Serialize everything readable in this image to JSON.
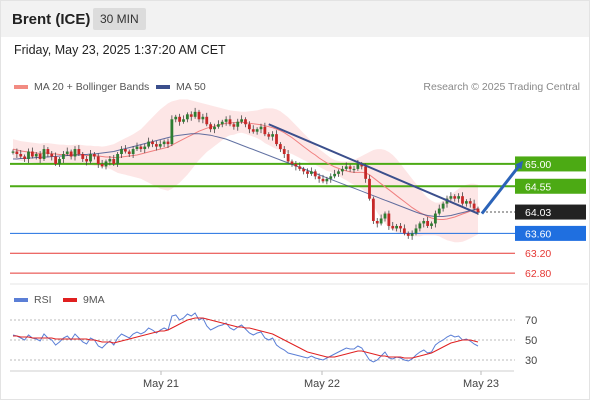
{
  "header": {
    "instrument": "Brent (ICE)",
    "timeframe": "30 MIN",
    "datetime": "Friday, May 23, 2025 1:37:20 AM CET"
  },
  "legend": {
    "ma_bb": {
      "label": "MA 20 + Bollinger Bands",
      "color": "#f28b82"
    },
    "ma50": {
      "label": "MA 50",
      "color": "#3b4f8c"
    },
    "credit": "Research © 2025 Trading Central"
  },
  "rsi_legend": {
    "rsi": {
      "label": "RSI",
      "color": "#5b7fd6"
    },
    "ma9": {
      "label": "9MA",
      "color": "#e02020"
    }
  },
  "chart_data": [
    {
      "type": "candlestick",
      "title": "",
      "yrange": [
        62.6,
        66.45
      ],
      "x_labels": [
        "May 21",
        "May 22",
        "May 23"
      ],
      "price_levels": [
        {
          "value": 65.0,
          "label": "65.00",
          "kind": "resistance",
          "color": "#4caa14"
        },
        {
          "value": 64.55,
          "label": "64.55",
          "kind": "resistance",
          "color": "#4caa14"
        },
        {
          "value": 64.03,
          "label": "64.03",
          "kind": "last",
          "color": "#222222"
        },
        {
          "value": 63.6,
          "label": "63.60",
          "kind": "pivot",
          "color": "#1f6fe0"
        },
        {
          "value": 63.2,
          "label": "63.20",
          "kind": "support",
          "color": "#e53935"
        },
        {
          "value": 62.8,
          "label": "62.80",
          "kind": "support",
          "color": "#e53935"
        }
      ],
      "closes": [
        65.25,
        65.2,
        65.15,
        65.1,
        65.25,
        65.15,
        65.2,
        65.1,
        65.3,
        65.2,
        65.15,
        65.0,
        65.1,
        65.2,
        65.25,
        65.15,
        65.3,
        65.2,
        65.1,
        65.05,
        65.2,
        65.15,
        65.0,
        64.95,
        65.05,
        65.1,
        65.0,
        65.2,
        65.3,
        65.25,
        65.2,
        65.3,
        65.35,
        65.3,
        65.35,
        65.45,
        65.4,
        65.35,
        65.4,
        65.45,
        65.4,
        65.9,
        65.95,
        65.85,
        65.9,
        66.0,
        65.95,
        66.05,
        65.9,
        65.95,
        65.8,
        65.7,
        65.75,
        65.8,
        65.85,
        65.9,
        65.8,
        65.75,
        65.85,
        65.9,
        65.8,
        65.7,
        65.65,
        65.7,
        65.75,
        65.6,
        65.55,
        65.6,
        65.4,
        65.3,
        65.2,
        65.05,
        65.0,
        64.95,
        64.9,
        64.85,
        64.8,
        64.85,
        64.75,
        64.7,
        64.65,
        64.7,
        64.75,
        64.8,
        64.85,
        64.9,
        64.95,
        64.9,
        64.9,
        65.0,
        64.95,
        64.7,
        64.3,
        63.85,
        63.8,
        63.9,
        64.0,
        63.75,
        63.7,
        63.75,
        63.7,
        63.6,
        63.55,
        63.6,
        63.7,
        63.8,
        63.85,
        63.75,
        63.8,
        64.0,
        64.1,
        64.2,
        64.3,
        64.35,
        64.3,
        64.35,
        64.2,
        64.25,
        64.2,
        64.1,
        64.03
      ],
      "ma20": [
        65.3,
        65.28,
        65.26,
        65.25,
        65.24,
        65.23,
        65.22,
        65.21,
        65.22,
        65.22,
        65.21,
        65.2,
        65.19,
        65.19,
        65.18,
        65.18,
        65.19,
        65.19,
        65.18,
        65.17,
        65.17,
        65.16,
        65.16,
        65.15,
        65.14,
        65.14,
        65.13,
        65.13,
        65.14,
        65.15,
        65.16,
        65.17,
        65.18,
        65.2,
        65.22,
        65.24,
        65.26,
        65.28,
        65.3,
        65.32,
        65.34,
        65.38,
        65.42,
        65.46,
        65.5,
        65.54,
        65.58,
        65.62,
        65.66,
        65.69,
        65.72,
        65.74,
        65.76,
        65.78,
        65.8,
        65.82,
        65.83,
        65.83,
        65.84,
        65.84,
        65.83,
        65.82,
        65.81,
        65.8,
        65.79,
        65.77,
        65.75,
        65.73,
        65.7,
        65.67,
        65.63,
        65.58,
        65.53,
        65.47,
        65.41,
        65.35,
        65.29,
        65.23,
        65.18,
        65.12,
        65.07,
        65.02,
        64.98,
        64.94,
        64.91,
        64.88,
        64.86,
        64.84,
        64.83,
        64.83,
        64.83,
        64.82,
        64.78,
        64.72,
        64.66,
        64.6,
        64.54,
        64.48,
        64.42,
        64.36,
        64.3,
        64.24,
        64.18,
        64.12,
        64.07,
        64.02,
        63.98,
        63.94,
        63.91,
        63.89,
        63.88,
        63.88,
        63.89,
        63.91,
        63.93,
        63.96,
        63.99,
        64.02,
        64.05,
        64.07,
        64.08
      ],
      "bb_upper": [
        65.5,
        65.48,
        65.46,
        65.45,
        65.44,
        65.43,
        65.42,
        65.41,
        65.42,
        65.42,
        65.41,
        65.4,
        65.39,
        65.39,
        65.38,
        65.38,
        65.39,
        65.39,
        65.38,
        65.37,
        65.37,
        65.36,
        65.36,
        65.35,
        65.36,
        65.38,
        65.4,
        65.44,
        65.48,
        65.52,
        65.56,
        65.6,
        65.65,
        65.7,
        65.78,
        65.86,
        65.94,
        66.02,
        66.1,
        66.16,
        66.22,
        66.26,
        66.28,
        66.3,
        66.3,
        66.3,
        66.28,
        66.26,
        66.24,
        66.22,
        66.2,
        66.18,
        66.16,
        66.14,
        66.12,
        66.1,
        66.08,
        66.07,
        66.06,
        66.05,
        66.05,
        66.06,
        66.07,
        66.08,
        66.1,
        66.12,
        66.12,
        66.12,
        66.1,
        66.06,
        66.0,
        65.94,
        65.86,
        65.78,
        65.7,
        65.62,
        65.54,
        65.46,
        65.38,
        65.3,
        65.24,
        65.18,
        65.12,
        65.08,
        65.06,
        65.05,
        65.05,
        65.06,
        65.08,
        65.12,
        65.16,
        65.2,
        65.24,
        65.28,
        65.3,
        65.3,
        65.28,
        65.24,
        65.18,
        65.1,
        65.0,
        64.9,
        64.8,
        64.7,
        64.6,
        64.5,
        64.4,
        64.32,
        64.26,
        64.22,
        64.22,
        64.26,
        64.32,
        64.38,
        64.44,
        64.5,
        64.55,
        64.58,
        64.6,
        64.6,
        64.58
      ],
      "bb_lower": [
        65.1,
        65.08,
        65.06,
        65.05,
        65.04,
        65.03,
        65.02,
        65.01,
        65.02,
        65.02,
        65.01,
        65.0,
        64.99,
        64.99,
        64.98,
        64.98,
        64.99,
        64.99,
        64.98,
        64.97,
        64.97,
        64.96,
        64.96,
        64.95,
        64.92,
        64.9,
        64.86,
        64.82,
        64.8,
        64.78,
        64.76,
        64.74,
        64.72,
        64.7,
        64.66,
        64.62,
        64.58,
        64.54,
        64.5,
        64.48,
        64.46,
        64.5,
        64.56,
        64.62,
        64.7,
        64.78,
        64.88,
        64.98,
        65.08,
        65.16,
        65.24,
        65.3,
        65.36,
        65.42,
        65.48,
        65.54,
        65.58,
        65.59,
        65.62,
        65.63,
        65.61,
        65.58,
        65.55,
        65.52,
        65.48,
        65.42,
        65.38,
        65.34,
        65.3,
        65.28,
        65.26,
        65.22,
        65.2,
        65.16,
        65.12,
        65.08,
        65.04,
        65.0,
        64.98,
        64.94,
        64.9,
        64.86,
        64.84,
        64.8,
        64.76,
        64.71,
        64.67,
        64.62,
        64.58,
        64.54,
        64.5,
        64.44,
        64.32,
        64.16,
        64.02,
        63.9,
        63.8,
        63.72,
        63.66,
        63.62,
        63.6,
        63.58,
        63.56,
        63.54,
        63.54,
        63.54,
        63.56,
        63.56,
        63.56,
        63.56,
        63.54,
        63.5,
        63.46,
        63.44,
        63.42,
        63.42,
        63.43,
        63.46,
        63.5,
        63.54,
        63.58
      ],
      "ma50": [
        65.1,
        65.1,
        65.11,
        65.11,
        65.12,
        65.12,
        65.13,
        65.13,
        65.14,
        65.14,
        65.15,
        65.15,
        65.16,
        65.16,
        65.17,
        65.17,
        65.18,
        65.18,
        65.19,
        65.19,
        65.2,
        65.2,
        65.21,
        65.22,
        65.23,
        65.24,
        65.25,
        65.27,
        65.29,
        65.31,
        65.33,
        65.35,
        65.37,
        65.39,
        65.41,
        65.43,
        65.45,
        65.47,
        65.49,
        65.51,
        65.53,
        65.55,
        65.57,
        65.58,
        65.59,
        65.6,
        65.61,
        65.61,
        65.61,
        65.6,
        65.59,
        65.58,
        65.56,
        65.54,
        65.52,
        65.5,
        65.47,
        65.44,
        65.41,
        65.38,
        65.35,
        65.32,
        65.29,
        65.26,
        65.23,
        65.2,
        65.17,
        65.14,
        65.11,
        65.08,
        65.05,
        65.02,
        64.99,
        64.96,
        64.93,
        64.9,
        64.87,
        64.84,
        64.81,
        64.78,
        64.75,
        64.72,
        64.69,
        64.66,
        64.63,
        64.6,
        64.57,
        64.54,
        64.51,
        64.48,
        64.45,
        64.42,
        64.39,
        64.36,
        64.33,
        64.3,
        64.27,
        64.24,
        64.21,
        64.18,
        64.15,
        64.12,
        64.09,
        64.06,
        64.03,
        64.0,
        63.98,
        63.96,
        63.95,
        63.94,
        63.94,
        63.94,
        63.95,
        63.96,
        63.98,
        64.0,
        64.02,
        64.04,
        64.06,
        64.08,
        64.1
      ],
      "trendline": {
        "from": [
          66,
          65.8
        ],
        "to": [
          120,
          64.0
        ]
      },
      "arrow": {
        "from": [
          121,
          64.0
        ],
        "to": [
          131,
          65.0
        ]
      }
    },
    {
      "type": "line",
      "title": "",
      "yrange": [
        22,
        78
      ],
      "yticks": [
        30,
        50,
        70
      ],
      "levels": [
        30,
        50,
        70
      ],
      "rsi": [
        55,
        54,
        52,
        50,
        55,
        52,
        51,
        49,
        56,
        52,
        50,
        45,
        48,
        52,
        54,
        50,
        56,
        52,
        48,
        46,
        52,
        50,
        44,
        42,
        46,
        49,
        45,
        52,
        56,
        54,
        52,
        56,
        58,
        56,
        58,
        62,
        60,
        57,
        60,
        62,
        60,
        74,
        75,
        70,
        72,
        76,
        74,
        77,
        70,
        72,
        64,
        60,
        62,
        64,
        65,
        67,
        62,
        60,
        63,
        65,
        61,
        57,
        55,
        57,
        58,
        52,
        50,
        52,
        45,
        42,
        40,
        37,
        36,
        35,
        34,
        33,
        32,
        34,
        32,
        31,
        30,
        32,
        34,
        36,
        38,
        40,
        42,
        41,
        41,
        44,
        42,
        36,
        30,
        28,
        30,
        34,
        38,
        32,
        31,
        33,
        32,
        30,
        29,
        31,
        35,
        38,
        40,
        37,
        38,
        45,
        48,
        50,
        53,
        55,
        53,
        54,
        50,
        51,
        49,
        46,
        44
      ],
      "ma9": [
        54,
        54,
        53,
        53,
        53,
        52,
        52,
        52,
        52,
        52,
        52,
        51,
        51,
        51,
        51,
        51,
        51,
        51,
        51,
        51,
        50,
        50,
        49,
        48,
        48,
        48,
        47,
        48,
        49,
        50,
        51,
        52,
        53,
        54,
        55,
        56,
        57,
        58,
        59,
        59,
        60,
        62,
        64,
        66,
        68,
        70,
        71,
        72,
        72,
        72,
        71,
        70,
        69,
        68,
        67,
        66,
        65,
        64,
        63,
        63,
        62,
        62,
        61,
        60,
        59,
        58,
        57,
        56,
        54,
        52,
        50,
        48,
        46,
        44,
        42,
        40,
        38,
        37,
        36,
        35,
        34,
        33,
        33,
        33,
        34,
        35,
        36,
        37,
        38,
        39,
        39,
        38,
        37,
        36,
        35,
        34,
        34,
        33,
        33,
        33,
        33,
        32,
        32,
        32,
        33,
        34,
        35,
        36,
        37,
        39,
        41,
        43,
        45,
        47,
        48,
        49,
        50,
        50,
        50,
        49,
        48
      ],
      "x_labels": [
        "May 21",
        "May 22",
        "May 23"
      ]
    }
  ]
}
